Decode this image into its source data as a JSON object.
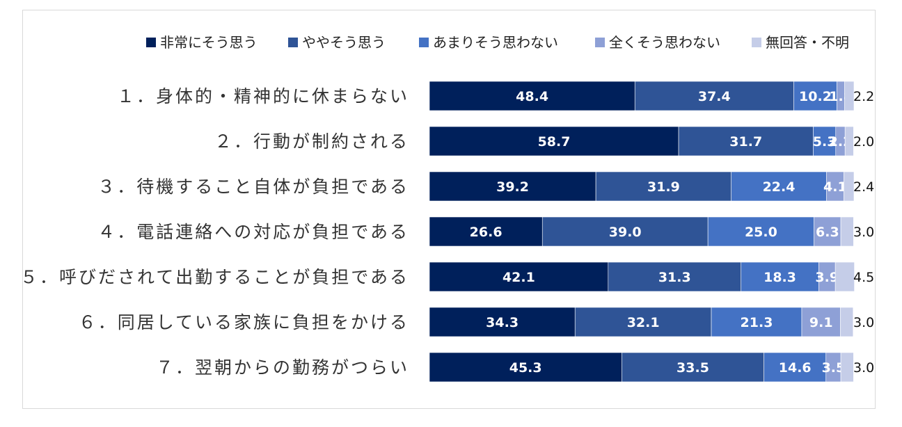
{
  "chart_data": {
    "type": "bar",
    "orientation": "horizontal",
    "stacked": true,
    "title": "",
    "xlabel": "",
    "ylabel": "",
    "xlim": [
      0,
      100
    ],
    "grid": false,
    "legend_position": "top",
    "categories": [
      "１．身体的・精神的に休まらない",
      "２．行動が制約される",
      "３．待機すること自体が負担である",
      "４．電話連絡への対応が負担である",
      "５．呼びだされて出勤することが負担である",
      "６．同居している家族に負担をかける",
      "７．翌朝からの勤務がつらい"
    ],
    "series": [
      {
        "name": "非常にそう思う",
        "color": "#00205b",
        "values": [
          48.4,
          58.7,
          39.2,
          26.6,
          42.1,
          34.3,
          45.3
        ]
      },
      {
        "name": "ややそう思う",
        "color": "#2f5496",
        "values": [
          37.4,
          31.7,
          31.9,
          39.0,
          31.3,
          32.1,
          33.5
        ]
      },
      {
        "name": "あまりそう思わない",
        "color": "#4472c4",
        "values": [
          10.2,
          5.3,
          22.4,
          25.0,
          18.3,
          21.3,
          14.6
        ]
      },
      {
        "name": "全くそう思わない",
        "color": "#8ea0d6",
        "values": [
          1.8,
          2.2,
          4.1,
          6.3,
          3.9,
          9.1,
          3.5
        ]
      },
      {
        "name": "無回答・不明",
        "color": "#c5cde8",
        "values": [
          2.2,
          2.0,
          2.4,
          3.0,
          4.5,
          3.0,
          3.0
        ]
      }
    ],
    "data_labels": [
      [
        "48.4",
        "37.4",
        "10.2",
        "1.8",
        "2.2"
      ],
      [
        "58.7",
        "31.7",
        "5.3",
        "2.2",
        "2.0"
      ],
      [
        "39.2",
        "31.9",
        "22.4",
        "4.1",
        "2.4"
      ],
      [
        "26.6",
        "39.0",
        "25.0",
        "6.3",
        "3.0"
      ],
      [
        "42.1",
        "31.3",
        "18.3",
        "3.9",
        "4.5"
      ],
      [
        "34.3",
        "32.1",
        "21.3",
        "9.1",
        "3.0"
      ],
      [
        "45.3",
        "33.5",
        "14.6",
        "3.5",
        "3.0"
      ]
    ]
  }
}
